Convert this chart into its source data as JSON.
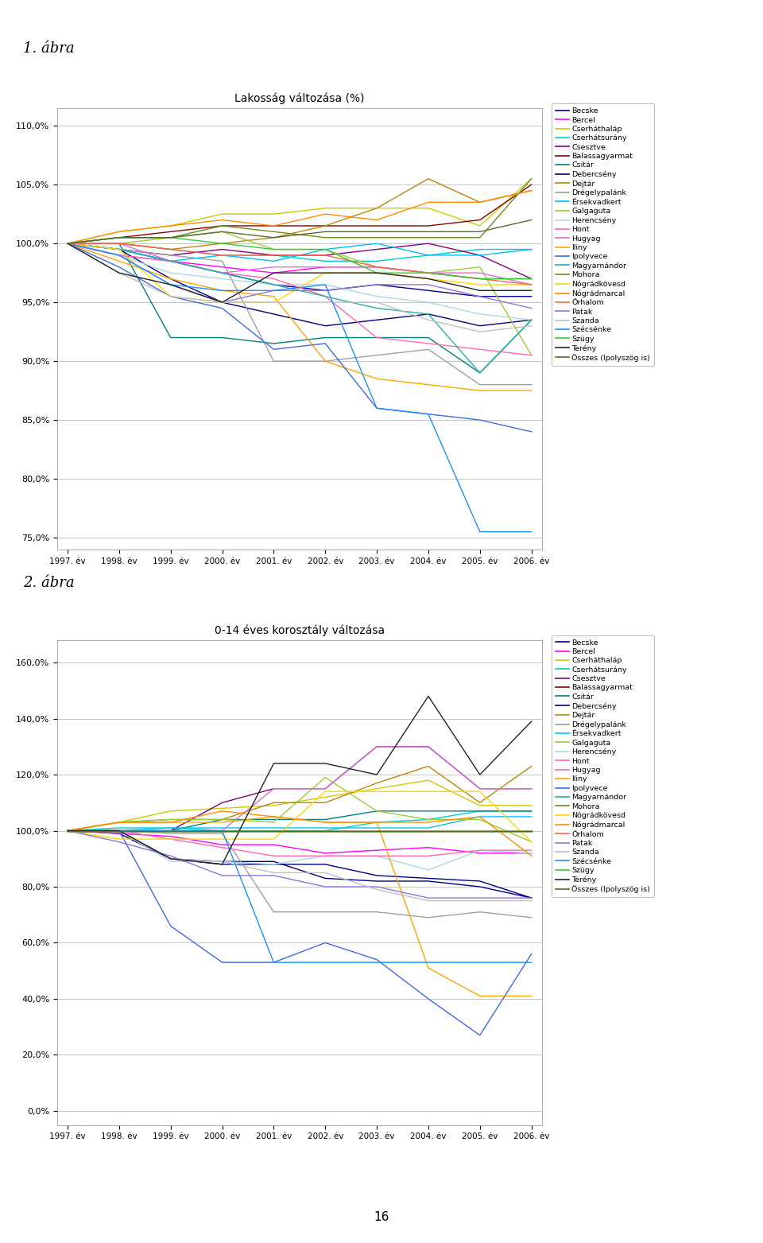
{
  "years": [
    1997,
    1998,
    1999,
    2000,
    2001,
    2002,
    2003,
    2004,
    2005,
    2006
  ],
  "chart1_title": "Lakosság változása (%)",
  "chart2_title": "0-14 éves korosztály változása",
  "fig1_label": "1. ábra",
  "fig2_label": "2. ábra",
  "page_number": "16",
  "colors": [
    "#00008B",
    "#FF00FF",
    "#CCCC00",
    "#00CCCC",
    "#800080",
    "#8B0000",
    "#008080",
    "#000080",
    "#B8860B",
    "#A0A0A0",
    "#00BFFF",
    "#9ACD32",
    "#ADD8E6",
    "#FF69B4",
    "#DA70D6",
    "#FFA500",
    "#4169E1",
    "#20B2AA",
    "#6B8E23",
    "#FFD700",
    "#FF8C00",
    "#FF6347",
    "#9370DB",
    "#C0C0C0",
    "#1E90FF",
    "#32CD32",
    "#222222",
    "#556B2F"
  ],
  "names": [
    "Becske",
    "Bercel",
    "Cserháthaláp",
    "Cserhátsurány",
    "Csesztve",
    "Balassagyarmat",
    "Csitár",
    "Debercsény",
    "Dejtár",
    "Drégelypalánk",
    "Érsekvadkert",
    "Galgaguta",
    "Herencsény",
    "Hont",
    "Hugyag",
    "Iliny",
    "Ipolyvece",
    "Magyarnándor",
    "Mohora",
    "Nógrádkövesd",
    "Nógrádmarcal",
    "Őrhalom",
    "Patak",
    "Szanda",
    "Szécsénke",
    "Szügy",
    "Terény",
    "Összes (Ipolyszög is)"
  ],
  "chart1_data": [
    [
      100.0,
      99.5,
      98.5,
      97.5,
      96.5,
      96.0,
      96.5,
      96.0,
      95.5,
      95.5
    ],
    [
      100.0,
      99.0,
      98.5,
      98.0,
      97.5,
      98.0,
      98.0,
      97.5,
      97.0,
      97.0
    ],
    [
      100.0,
      101.0,
      101.5,
      102.5,
      102.5,
      103.0,
      103.0,
      103.0,
      101.5,
      105.5
    ],
    [
      100.0,
      100.0,
      99.5,
      99.0,
      99.0,
      98.5,
      98.5,
      99.0,
      99.5,
      99.5
    ],
    [
      100.0,
      99.5,
      99.0,
      99.5,
      99.0,
      99.0,
      99.5,
      100.0,
      99.0,
      97.0
    ],
    [
      100.0,
      100.5,
      101.0,
      101.5,
      101.5,
      101.5,
      101.5,
      101.5,
      102.0,
      105.0
    ],
    [
      100.0,
      100.0,
      92.0,
      92.0,
      91.5,
      92.0,
      92.0,
      92.0,
      89.0,
      93.5
    ],
    [
      100.0,
      99.5,
      97.0,
      95.0,
      94.0,
      93.0,
      93.5,
      94.0,
      93.0,
      93.5
    ],
    [
      100.0,
      100.0,
      99.5,
      100.0,
      100.5,
      101.5,
      103.0,
      105.5,
      103.5,
      104.5
    ],
    [
      100.0,
      99.5,
      99.0,
      98.5,
      90.0,
      90.0,
      90.5,
      91.0,
      88.0,
      88.0
    ],
    [
      100.0,
      99.5,
      98.5,
      99.0,
      98.5,
      99.5,
      100.0,
      99.0,
      99.0,
      99.5
    ],
    [
      100.0,
      100.0,
      100.5,
      101.0,
      99.5,
      99.5,
      98.0,
      97.5,
      98.0,
      90.5
    ],
    [
      100.0,
      99.0,
      97.5,
      97.0,
      96.5,
      96.5,
      95.5,
      95.0,
      94.0,
      93.5
    ],
    [
      100.0,
      99.0,
      98.5,
      97.5,
      97.0,
      95.5,
      92.0,
      91.5,
      91.0,
      90.5
    ],
    [
      100.0,
      100.0,
      98.5,
      97.5,
      98.0,
      98.0,
      98.0,
      97.5,
      97.5,
      96.5
    ],
    [
      100.0,
      98.5,
      97.0,
      96.0,
      95.5,
      90.0,
      88.5,
      88.0,
      87.5,
      87.5
    ],
    [
      100.0,
      98.0,
      95.5,
      94.5,
      91.0,
      91.5,
      86.0,
      85.5,
      85.0,
      84.0
    ],
    [
      100.0,
      99.5,
      98.5,
      97.5,
      96.5,
      95.5,
      94.5,
      94.0,
      89.0,
      93.5
    ],
    [
      100.0,
      100.5,
      100.5,
      101.5,
      101.0,
      100.5,
      100.5,
      100.5,
      100.5,
      105.5
    ],
    [
      100.0,
      99.5,
      95.5,
      95.0,
      95.0,
      97.5,
      97.5,
      97.0,
      96.5,
      96.5
    ],
    [
      100.0,
      101.0,
      101.5,
      102.0,
      101.5,
      102.5,
      102.0,
      103.5,
      103.5,
      104.5
    ],
    [
      100.0,
      100.0,
      99.5,
      99.0,
      99.0,
      99.0,
      98.0,
      97.5,
      97.0,
      96.5
    ],
    [
      100.0,
      99.0,
      96.5,
      95.0,
      96.0,
      96.0,
      96.5,
      96.5,
      95.5,
      94.5
    ],
    [
      100.0,
      97.5,
      95.5,
      95.0,
      95.0,
      95.0,
      95.0,
      93.5,
      92.5,
      93.0
    ],
    [
      100.0,
      99.0,
      96.5,
      96.0,
      96.0,
      96.5,
      86.0,
      85.5,
      75.5,
      75.5
    ],
    [
      100.0,
      100.5,
      100.5,
      100.0,
      99.5,
      99.5,
      97.5,
      97.5,
      97.0,
      97.0
    ],
    [
      100.0,
      97.5,
      96.5,
      95.0,
      97.5,
      97.5,
      97.5,
      97.0,
      96.0,
      96.0
    ],
    [
      100.0,
      100.5,
      100.5,
      101.0,
      100.5,
      101.0,
      101.0,
      101.0,
      101.0,
      102.0
    ]
  ],
  "chart2_data": [
    [
      100.0,
      99.0,
      90.0,
      88.0,
      88.0,
      88.0,
      84.0,
      83.0,
      82.0,
      76.0
    ],
    [
      100.0,
      99.0,
      98.0,
      95.0,
      95.0,
      92.0,
      93.0,
      94.0,
      92.0,
      92.0
    ],
    [
      100.0,
      103.0,
      107.0,
      108.0,
      109.0,
      112.0,
      115.0,
      118.0,
      109.0,
      109.0
    ],
    [
      100.0,
      101.0,
      101.0,
      100.0,
      100.0,
      100.0,
      103.0,
      104.0,
      107.0,
      107.0
    ],
    [
      100.0,
      100.0,
      100.0,
      110.0,
      115.0,
      115.0,
      130.0,
      130.0,
      115.0,
      115.0
    ],
    [
      100.0,
      100.0,
      100.0,
      100.0,
      100.0,
      100.0,
      100.0,
      100.0,
      100.0,
      100.0
    ],
    [
      100.0,
      100.0,
      100.0,
      104.0,
      104.0,
      104.0,
      107.0,
      107.0,
      107.0,
      107.0
    ],
    [
      100.0,
      100.0,
      90.0,
      89.0,
      89.0,
      83.0,
      82.0,
      82.0,
      80.0,
      76.0
    ],
    [
      100.0,
      103.0,
      104.0,
      104.0,
      110.0,
      110.0,
      117.0,
      123.0,
      110.0,
      123.0
    ],
    [
      100.0,
      100.0,
      99.0,
      99.0,
      71.0,
      71.0,
      71.0,
      69.0,
      71.0,
      69.0
    ],
    [
      100.0,
      100.0,
      101.0,
      101.0,
      101.0,
      101.0,
      101.0,
      101.0,
      105.0,
      105.0
    ],
    [
      100.0,
      103.0,
      104.0,
      104.0,
      103.0,
      119.0,
      107.0,
      104.0,
      104.0,
      96.0
    ],
    [
      100.0,
      100.0,
      89.0,
      89.0,
      88.0,
      91.0,
      91.0,
      86.0,
      93.0,
      92.0
    ],
    [
      100.0,
      100.0,
      97.0,
      94.0,
      91.0,
      91.0,
      91.0,
      91.0,
      93.0,
      93.0
    ],
    [
      100.0,
      100.0,
      100.0,
      100.0,
      115.0,
      115.0,
      130.0,
      130.0,
      115.0,
      115.0
    ],
    [
      100.0,
      103.0,
      103.0,
      103.0,
      105.0,
      103.0,
      103.0,
      51.0,
      41.0,
      41.0
    ],
    [
      100.0,
      100.0,
      66.0,
      53.0,
      53.0,
      60.0,
      54.0,
      40.0,
      27.0,
      56.0
    ],
    [
      100.0,
      100.0,
      100.0,
      100.0,
      100.0,
      100.0,
      100.0,
      100.0,
      100.0,
      100.0
    ],
    [
      100.0,
      100.0,
      100.0,
      100.0,
      100.0,
      100.0,
      100.0,
      100.0,
      100.0,
      100.0
    ],
    [
      100.0,
      97.0,
      97.0,
      97.0,
      97.0,
      114.0,
      114.0,
      114.0,
      114.0,
      96.0
    ],
    [
      100.0,
      103.0,
      103.0,
      107.0,
      105.0,
      103.0,
      103.0,
      103.0,
      105.0,
      91.0
    ],
    [
      100.0,
      100.0,
      100.0,
      100.0,
      100.0,
      100.0,
      100.0,
      100.0,
      100.0,
      100.0
    ],
    [
      100.0,
      96.0,
      91.0,
      84.0,
      84.0,
      80.0,
      80.0,
      76.0,
      76.0,
      76.0
    ],
    [
      100.0,
      100.0,
      90.0,
      89.0,
      85.0,
      85.0,
      79.0,
      75.0,
      75.0,
      75.0
    ],
    [
      100.0,
      100.0,
      100.0,
      100.0,
      53.0,
      53.0,
      53.0,
      53.0,
      53.0,
      53.0
    ],
    [
      100.0,
      100.0,
      100.0,
      100.0,
      100.0,
      100.0,
      100.0,
      100.0,
      100.0,
      100.0
    ],
    [
      100.0,
      100.0,
      90.0,
      88.0,
      124.0,
      124.0,
      120.0,
      148.0,
      120.0,
      139.0
    ],
    [
      100.0,
      100.0,
      100.0,
      100.0,
      100.0,
      100.0,
      100.0,
      100.0,
      100.0,
      100.0
    ]
  ]
}
